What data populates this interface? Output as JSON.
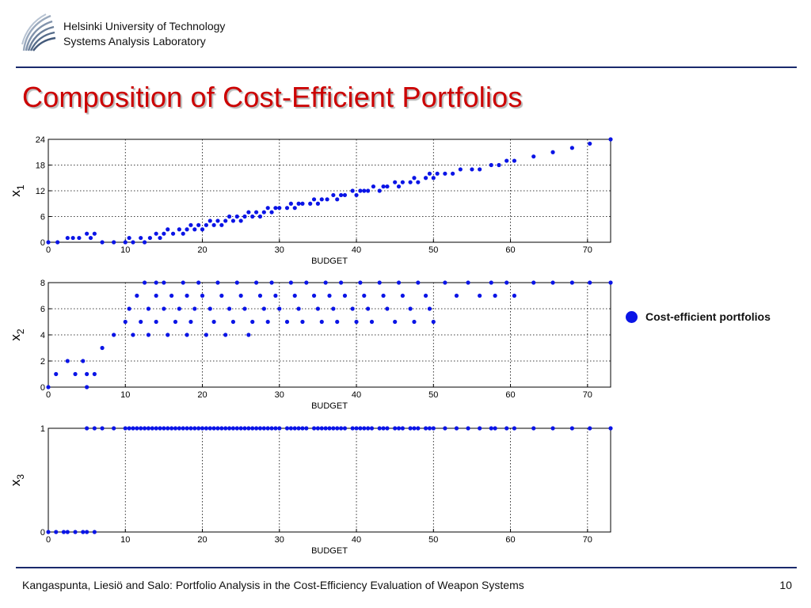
{
  "header": {
    "institution_line1": "Helsinki University of Technology",
    "institution_line2": "Systems Analysis Laboratory"
  },
  "slide": {
    "title": "Composition of Cost-Efficient Portfolios"
  },
  "legend": {
    "label": "Cost-efficient portfolios",
    "color": "#0a14e6"
  },
  "footer": {
    "text": "Kangaspunta, Liesiö and Salo: Portfolio Analysis in the Cost-Efficiency Evaluation of Weapon Systems",
    "page_number": "10"
  },
  "chart_data": [
    {
      "type": "scatter",
      "xlabel": "BUDGET",
      "ylabel": "x",
      "ylabel_subscript": "1",
      "xlim": [
        0,
        73
      ],
      "ylim": [
        0,
        24
      ],
      "xticks": [
        0,
        10,
        20,
        30,
        40,
        50,
        60,
        70
      ],
      "yticks": [
        0,
        6,
        12,
        18,
        24
      ],
      "grid": true,
      "color": "#0a14e6",
      "x": [
        0,
        1.2,
        2.5,
        3.2,
        4,
        5,
        5.5,
        6,
        7,
        8.5,
        10,
        10.5,
        11,
        12,
        12.5,
        13.2,
        14,
        14.5,
        15,
        15.5,
        16.2,
        17,
        17.5,
        18,
        18.5,
        19,
        19.5,
        20,
        20.5,
        21,
        21.5,
        22,
        22.5,
        23,
        23.5,
        24,
        24.5,
        25,
        25.5,
        26,
        26.5,
        27,
        27.5,
        28,
        28.5,
        29,
        29.5,
        30,
        31,
        31.5,
        32,
        32.5,
        33,
        34,
        34.5,
        35,
        35.5,
        36.2,
        37,
        37.5,
        38,
        38.5,
        39.5,
        40,
        40.5,
        41,
        41.5,
        42.2,
        43,
        43.5,
        44,
        45,
        45.5,
        46,
        47,
        47.5,
        48,
        49,
        49.5,
        50,
        50.5,
        51.5,
        52.5,
        53.5,
        55,
        56,
        57.5,
        58.5,
        59.5,
        60.5,
        63,
        65.5,
        68,
        70.3,
        73
      ],
      "y": [
        0,
        0,
        1,
        1,
        1,
        2,
        1,
        2,
        0,
        0,
        0,
        1,
        0,
        1,
        0,
        1,
        2,
        1,
        2,
        3,
        2,
        3,
        2,
        3,
        4,
        3,
        4,
        3,
        4,
        5,
        4,
        5,
        4,
        5,
        6,
        5,
        6,
        5,
        6,
        7,
        6,
        7,
        6,
        7,
        8,
        7,
        8,
        8,
        8,
        9,
        8,
        9,
        9,
        9,
        10,
        9,
        10,
        10,
        11,
        10,
        11,
        11,
        12,
        11,
        12,
        12,
        12,
        13,
        12,
        13,
        13,
        14,
        13,
        14,
        14,
        15,
        14,
        15,
        16,
        15,
        16,
        16,
        16,
        17,
        17,
        17,
        18,
        18,
        19,
        19,
        20,
        21,
        22,
        23,
        24
      ]
    },
    {
      "type": "scatter",
      "xlabel": "BUDGET",
      "ylabel": "x",
      "ylabel_subscript": "2",
      "xlim": [
        0,
        73
      ],
      "ylim": [
        0,
        8
      ],
      "xticks": [
        0,
        10,
        20,
        30,
        40,
        50,
        60,
        70
      ],
      "yticks": [
        0,
        2,
        4,
        6,
        8
      ],
      "grid": true,
      "color": "#0a14e6",
      "x": [
        0,
        1,
        2.5,
        3.5,
        4.5,
        5,
        5,
        6,
        7,
        8.5,
        10,
        10.5,
        11,
        11.5,
        12,
        12.5,
        13,
        13,
        14,
        14,
        14,
        15,
        15,
        15.5,
        16,
        16.5,
        17,
        17.5,
        18,
        18,
        18.5,
        19,
        19.5,
        20,
        20.5,
        21,
        21.5,
        22,
        22.5,
        23,
        23.5,
        24,
        24.5,
        25,
        25.5,
        26,
        26.5,
        27,
        27.5,
        28,
        28.5,
        29,
        29.5,
        30,
        31,
        31.5,
        32,
        32.5,
        33,
        33.5,
        34.5,
        35,
        35.5,
        36,
        36.5,
        37,
        37.5,
        38,
        38.5,
        39.5,
        40,
        40.5,
        41,
        41.5,
        42,
        43,
        43.5,
        44,
        45,
        45.5,
        46,
        47,
        47.5,
        48,
        49,
        49.5,
        50,
        51.5,
        53,
        54.5,
        56,
        57.5,
        58,
        59.5,
        60.5,
        63,
        65.5,
        68,
        70.3,
        73
      ],
      "y": [
        0,
        1,
        2,
        1,
        2,
        1,
        0,
        1,
        3,
        4,
        5,
        6,
        4,
        7,
        5,
        8,
        6,
        4,
        7,
        5,
        8,
        6,
        8,
        4,
        7,
        5,
        6,
        8,
        4,
        7,
        5,
        6,
        8,
        7,
        4,
        6,
        5,
        8,
        7,
        4,
        6,
        5,
        8,
        7,
        6,
        4,
        5,
        8,
        7,
        6,
        5,
        8,
        7,
        6,
        5,
        8,
        7,
        6,
        5,
        8,
        7,
        6,
        5,
        8,
        7,
        6,
        5,
        8,
        7,
        6,
        5,
        8,
        7,
        6,
        5,
        8,
        7,
        6,
        5,
        8,
        7,
        6,
        5,
        8,
        7,
        6,
        5,
        8,
        7,
        8,
        7,
        8,
        7,
        8,
        7,
        8,
        8,
        8,
        8,
        8
      ]
    },
    {
      "type": "scatter",
      "xlabel": "BUDGET",
      "ylabel": "x",
      "ylabel_subscript": "3",
      "xlim": [
        0,
        73
      ],
      "ylim": [
        0,
        1
      ],
      "xticks": [
        0,
        10,
        20,
        30,
        40,
        50,
        60,
        70
      ],
      "yticks": [
        0,
        1
      ],
      "grid": true,
      "color": "#0a14e6",
      "x": [
        0,
        1,
        2,
        2.5,
        3.5,
        4.5,
        5,
        6,
        5,
        6,
        7,
        8.5,
        10,
        10.5,
        11,
        11.5,
        12,
        12.5,
        13,
        13.5,
        14,
        14.5,
        15,
        15.5,
        16,
        16.5,
        17,
        17.5,
        18,
        18.5,
        19,
        19.5,
        20,
        20.5,
        21,
        21.5,
        22,
        22.5,
        23,
        23.5,
        24,
        24.5,
        25,
        25.5,
        26,
        26.5,
        27,
        27.5,
        28,
        28.5,
        29,
        29.5,
        30,
        31,
        31.5,
        32,
        32.5,
        33,
        33.5,
        34.5,
        35,
        35.5,
        36,
        36.5,
        37,
        37.5,
        38,
        38.5,
        39.5,
        40,
        40.5,
        41,
        41.5,
        42,
        43,
        43.5,
        44,
        45,
        45.5,
        46,
        47,
        47.5,
        48,
        49,
        49.5,
        50,
        51.5,
        53,
        54.5,
        56,
        57.5,
        58,
        59.5,
        60.5,
        63,
        65.5,
        68,
        70.3,
        73
      ],
      "y": [
        0,
        0,
        0,
        0,
        0,
        0,
        0,
        0,
        1,
        1,
        1,
        1,
        1,
        1,
        1,
        1,
        1,
        1,
        1,
        1,
        1,
        1,
        1,
        1,
        1,
        1,
        1,
        1,
        1,
        1,
        1,
        1,
        1,
        1,
        1,
        1,
        1,
        1,
        1,
        1,
        1,
        1,
        1,
        1,
        1,
        1,
        1,
        1,
        1,
        1,
        1,
        1,
        1,
        1,
        1,
        1,
        1,
        1,
        1,
        1,
        1,
        1,
        1,
        1,
        1,
        1,
        1,
        1,
        1,
        1,
        1,
        1,
        1,
        1,
        1,
        1,
        1,
        1,
        1,
        1,
        1,
        1,
        1,
        1,
        1,
        1,
        1,
        1,
        1,
        1,
        1,
        1,
        1,
        1,
        1,
        1,
        1,
        1,
        1
      ]
    }
  ]
}
